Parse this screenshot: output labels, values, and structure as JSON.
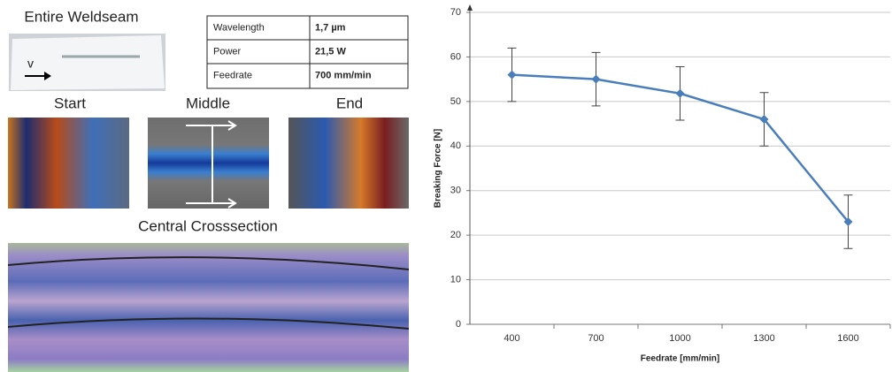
{
  "panel": {
    "title": "Entire Weldseam",
    "direction": "v",
    "positions": [
      "Start",
      "Middle",
      "End"
    ],
    "crosssection": "Central Crosssection"
  },
  "table": {
    "rows": [
      [
        "Wavelength",
        "1,7 µm"
      ],
      [
        "Power",
        "21,5 W"
      ],
      [
        "Feedrate",
        "700 mm/min"
      ]
    ]
  },
  "chart_data": {
    "type": "line",
    "x_label": "Feedrate [mm/min]",
    "y_label": "Breaking Force [N]",
    "categories": [
      "400",
      "700",
      "1000",
      "1300",
      "1600"
    ],
    "series": [
      {
        "color": "#4a7ebb",
        "values": [
          56,
          55,
          51.8,
          46,
          23
        ],
        "errors": [
          6,
          6,
          6,
          6,
          6
        ]
      }
    ],
    "ylim": [
      0,
      70
    ],
    "yticks": [
      0,
      10,
      20,
      30,
      40,
      50,
      60,
      70
    ],
    "grid": true
  }
}
